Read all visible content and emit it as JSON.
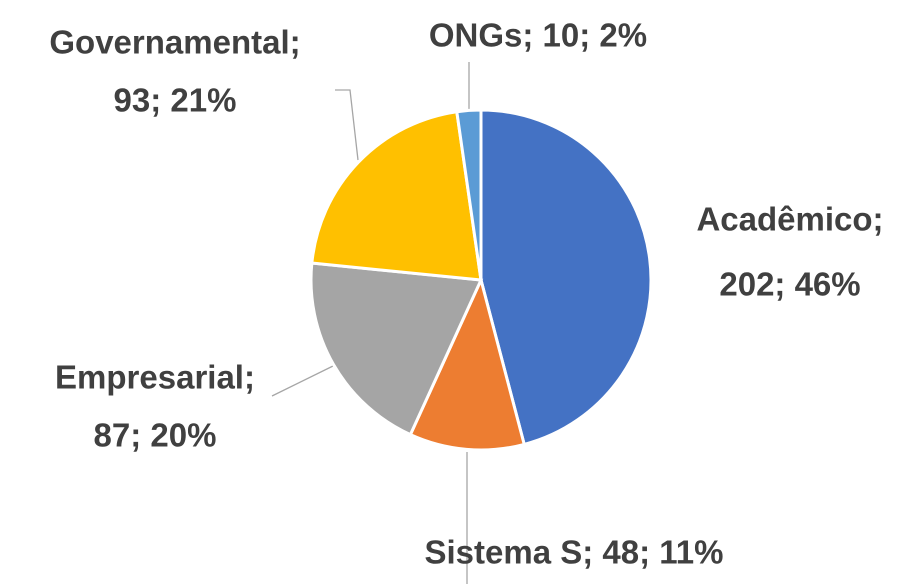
{
  "chart_data": {
    "type": "pie",
    "values": [
      202,
      48,
      87,
      93,
      10
    ],
    "value_labels": [
      [
        "Acadêmico;",
        "202; 46%"
      ],
      [
        "Sistema S; 48; 11%"
      ],
      [
        "Empresarial;",
        "87; 20%"
      ],
      [
        "Governamental;",
        "93; 21%"
      ],
      [
        "ONGs; 10; 2%"
      ]
    ],
    "colors": [
      "#4472c4",
      "#ed7d31",
      "#a5a5a5",
      "#ffc000",
      "#5b9bd5"
    ]
  }
}
